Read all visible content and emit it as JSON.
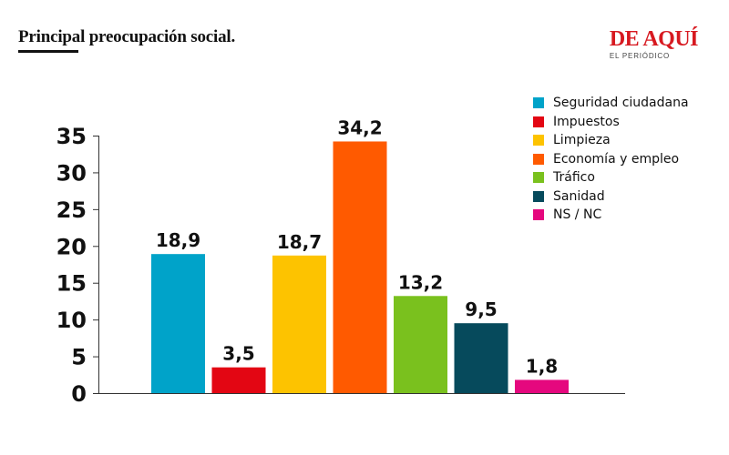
{
  "header": {
    "title": "Principal preocupación social.",
    "brand_name": "DE AQUÍ",
    "brand_sub": "EL PERIÓDICO"
  },
  "chart_data": {
    "type": "bar",
    "title": "Principal preocupación social.",
    "xlabel": "",
    "ylabel": "",
    "ylim": [
      0,
      35
    ],
    "yticks": [
      "35",
      "30",
      "25",
      "20",
      "15",
      "10",
      "5",
      "0"
    ],
    "grid": false,
    "legend_position": "top-right",
    "categories": [
      "Seguridad ciudadana",
      "Impuestos",
      "Limpieza",
      "Economía y empleo",
      "Tráfico",
      "Sanidad",
      "NS / NC"
    ],
    "values": [
      18.9,
      3.5,
      18.7,
      34.2,
      13.2,
      9.5,
      1.8
    ],
    "value_labels": [
      "18,9",
      "3,5",
      "18,7",
      "34,2",
      "13,2",
      "9,5",
      "1,8"
    ],
    "colors": [
      "#00a3c9",
      "#e30613",
      "#fdc300",
      "#ff5a00",
      "#7ac11e",
      "#064a5c",
      "#e5087e"
    ]
  }
}
